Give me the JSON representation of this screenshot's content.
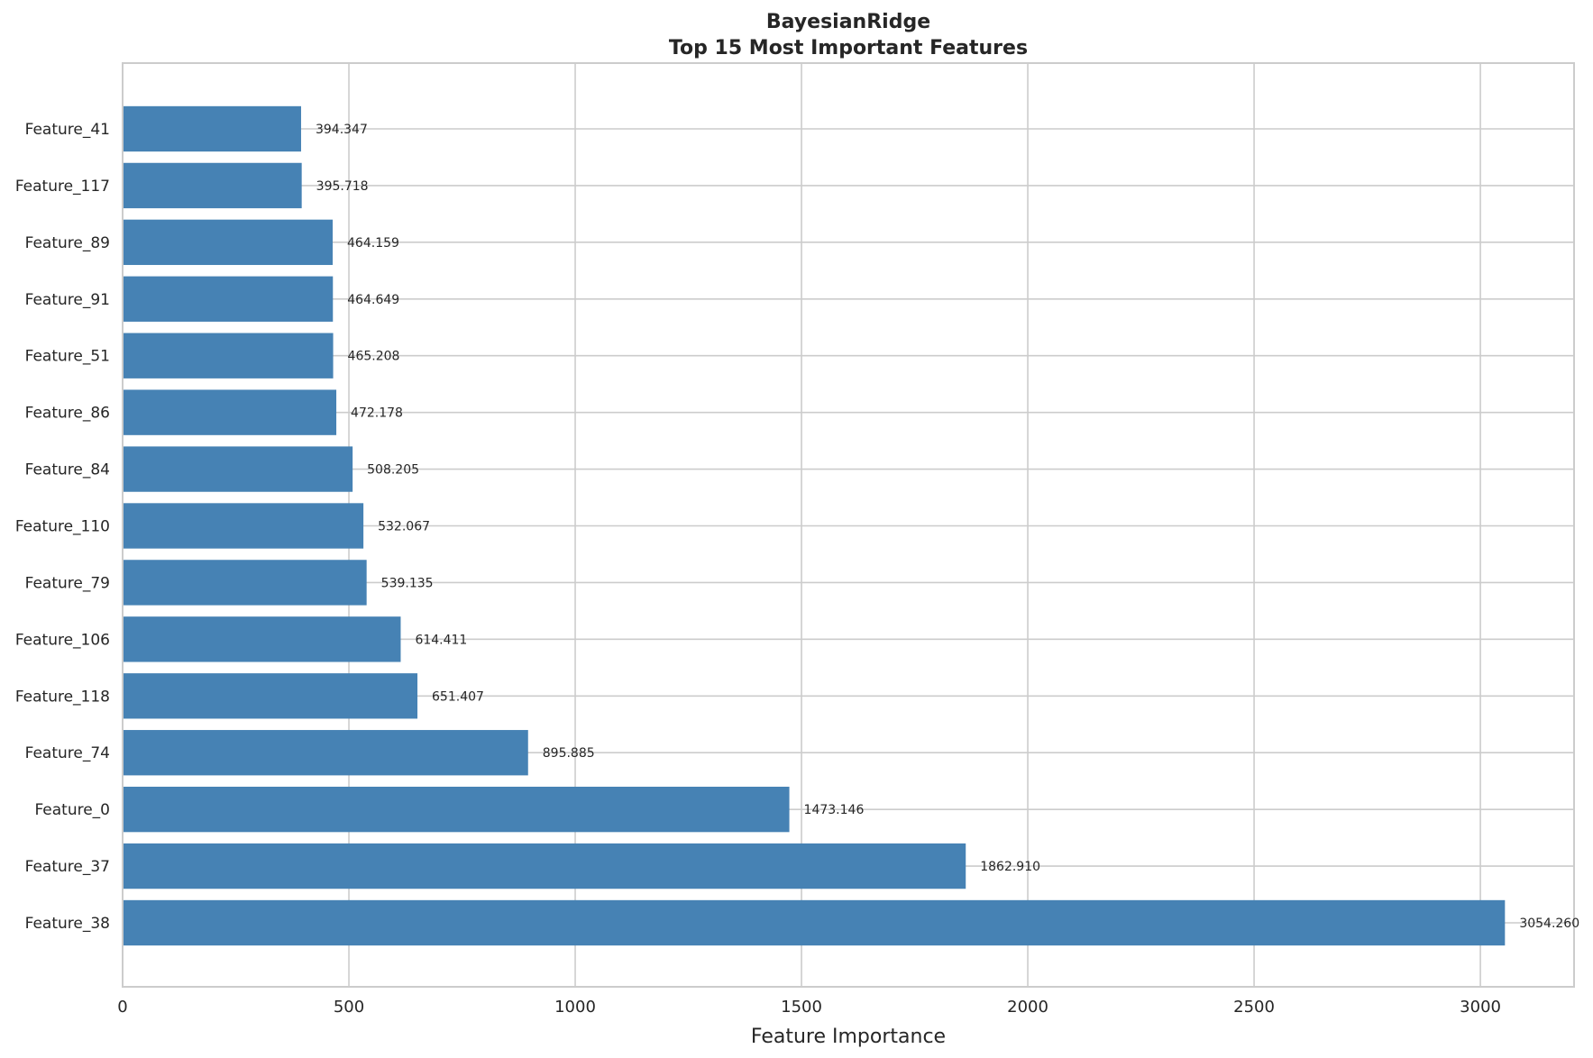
{
  "chart_data": {
    "type": "bar",
    "orientation": "horizontal",
    "title": "BayesianRidge",
    "subtitle": "Top 15 Most Important Features",
    "xlabel": "Feature Importance",
    "ylabel": "",
    "xlim": [
      0,
      3207
    ],
    "xticks": [
      0,
      500,
      1000,
      1500,
      2000,
      2500,
      3000
    ],
    "grid": true,
    "bar_color": "#4682b4",
    "categories": [
      "Feature_38",
      "Feature_37",
      "Feature_0",
      "Feature_74",
      "Feature_118",
      "Feature_106",
      "Feature_79",
      "Feature_110",
      "Feature_84",
      "Feature_86",
      "Feature_51",
      "Feature_91",
      "Feature_89",
      "Feature_117",
      "Feature_41"
    ],
    "values": [
      3054.26,
      1862.91,
      1473.146,
      895.885,
      651.407,
      614.411,
      539.135,
      532.067,
      508.205,
      472.178,
      465.208,
      464.649,
      464.159,
      395.718,
      394.347
    ],
    "value_labels": [
      "3054.260",
      "1862.910",
      "1473.146",
      "895.885",
      "651.407",
      "614.411",
      "539.135",
      "532.067",
      "508.205",
      "472.178",
      "465.208",
      "464.649",
      "464.159",
      "395.718",
      "394.347"
    ]
  }
}
